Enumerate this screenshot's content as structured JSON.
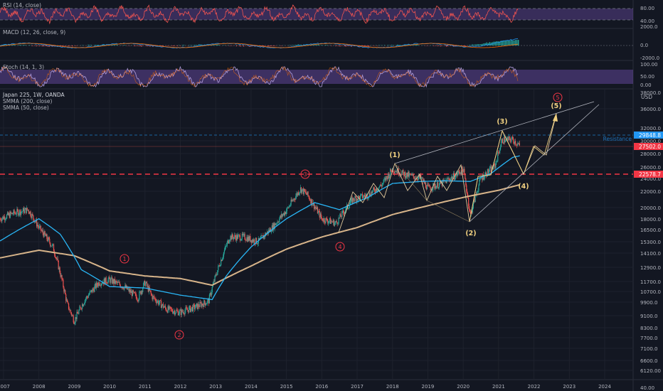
{
  "chart_data": [
    {
      "type": "line",
      "title": "RSI (14, close)",
      "y_ticks": [
        "80.00",
        "40.00"
      ],
      "band": [
        30,
        70
      ],
      "colors": {
        "line": "#ef5350",
        "band": "#7e57c2"
      }
    },
    {
      "type": "bar",
      "title": "MACD (12, 26, close, 9)",
      "y_ticks": [
        "2000.0",
        "0.0",
        "-2000.0"
      ],
      "colors": {
        "macd": "#2196f3",
        "signal": "#ff6d00",
        "hist_up": "#26a69a",
        "hist_down": "#ef5350"
      }
    },
    {
      "type": "line",
      "title": "Stoch (14, 1, 3)",
      "y_ticks": [
        "100.00",
        "50.00",
        "0.00"
      ],
      "band": [
        20,
        80
      ],
      "colors": {
        "k": "#7e57c2",
        "d": "#ff6d00",
        "band": "#7e57c2"
      }
    },
    {
      "type": "candlestick",
      "title": "Japan 225, 1W, OANDA",
      "indicators": [
        "SMMA (200, close)",
        "SMMA (50, close)"
      ],
      "y_ticks": [
        "38000.0",
        "36000.0",
        "32000.0",
        "30000.0",
        "28000.0",
        "26000.0",
        "24000.0",
        "22000.0",
        "20000.0",
        "18000.0",
        "16500.0",
        "15300.0",
        "14100.0",
        "12900.0",
        "11700.0",
        "10700.0",
        "9900.0",
        "9100.0",
        "8300.0",
        "7700.0",
        "7100.0",
        "6600.0",
        "6120.00",
        "40.00"
      ],
      "currency": "USD",
      "x_ticks": [
        "2007",
        "2008",
        "2009",
        "2010",
        "2011",
        "2012",
        "2013",
        "2014",
        "2015",
        "2016",
        "2017",
        "2018",
        "2019",
        "2020",
        "2021",
        "2022",
        "2023",
        "2024"
      ],
      "price_labels": {
        "resistance": "29848.8",
        "last": "27502.0",
        "support": "22578.7",
        "resistance_text": "Resistance"
      },
      "wave_labels": {
        "impulse": [
          "(1)",
          "(2)",
          "(3)",
          "(4)",
          "(5)"
        ],
        "circled": [
          "1",
          "2",
          "3",
          "4",
          "5"
        ]
      },
      "series": [
        {
          "name": "price",
          "x": [
            2006.9,
            2007.3,
            2007.7,
            2008.0,
            2008.4,
            2008.8,
            2009.0,
            2009.3,
            2009.7,
            2010.0,
            2010.4,
            2010.8,
            2011.0,
            2011.2,
            2011.6,
            2012.0,
            2012.4,
            2012.8,
            2013.0,
            2013.4,
            2013.8,
            2014.2,
            2014.6,
            2015.0,
            2015.4,
            2015.6,
            2016.0,
            2016.4,
            2016.9,
            2017.3,
            2017.7,
            2018.0,
            2018.4,
            2018.8,
            2019.0,
            2019.4,
            2019.8,
            2020.0,
            2020.2,
            2020.5,
            2020.9,
            2021.1,
            2021.4,
            2021.6
          ],
          "y": [
            16500,
            17200,
            17600,
            15500,
            13500,
            9000,
            8000,
            9300,
            10500,
            10700,
            10200,
            9400,
            10500,
            9500,
            8700,
            8500,
            8800,
            9200,
            11000,
            14500,
            14500,
            14000,
            15500,
            17500,
            20400,
            19500,
            16500,
            16000,
            19000,
            19500,
            21000,
            23500,
            22500,
            22000,
            20500,
            21200,
            22500,
            23500,
            16800,
            22000,
            24000,
            28800,
            29000,
            27500
          ]
        },
        {
          "name": "SMMA (50)",
          "x": [
            2006.9,
            2008.0,
            2008.6,
            2009.2,
            2010.0,
            2011.0,
            2012.0,
            2012.9,
            2013.3,
            2014.0,
            2015.0,
            2015.8,
            2016.5,
            2017.3,
            2018.0,
            2018.8,
            2019.5,
            2020.2,
            2020.8,
            2021.4,
            2021.6
          ],
          "y": [
            14100,
            16500,
            14800,
            11500,
            10200,
            10100,
            9600,
            9300,
            11000,
            13500,
            16500,
            18500,
            17600,
            19200,
            21200,
            21500,
            21600,
            21500,
            22800,
            25500,
            25800
          ]
        },
        {
          "name": "SMMA (200)",
          "x": [
            2006.9,
            2008.0,
            2009.0,
            2010.0,
            2011.0,
            2012.0,
            2012.9,
            2014.0,
            2015.0,
            2016.0,
            2017.0,
            2018.0,
            2019.0,
            2020.0,
            2021.0,
            2021.6
          ],
          "y": [
            12500,
            13200,
            12700,
            11400,
            11000,
            10800,
            10300,
            11800,
            13300,
            14500,
            15500,
            17000,
            18100,
            19200,
            20200,
            21000
          ]
        }
      ],
      "projection": {
        "x": [
          2020.2,
          2020.9,
          2021.1,
          2021.6,
          2021.8,
          2022.1,
          2022.4,
          2022.7
        ],
        "y": [
          16800,
          24000,
          28800,
          27500,
          22500,
          27000,
          25000,
          34500
        ]
      }
    }
  ]
}
